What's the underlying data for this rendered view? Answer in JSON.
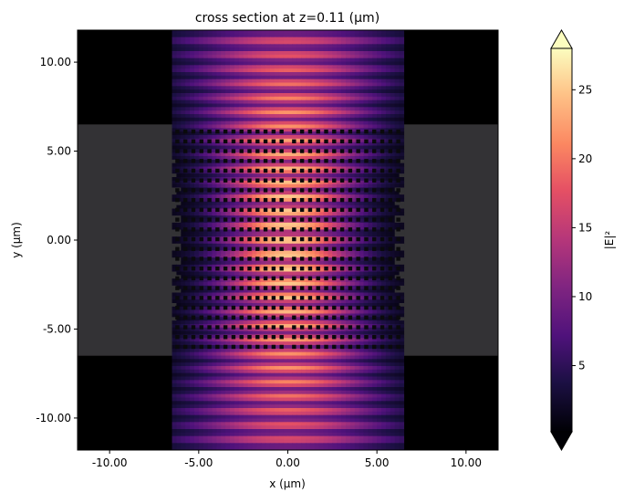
{
  "chart_data": {
    "type": "heatmap",
    "title": "cross section at z=0.11 (μm)",
    "xlabel": "x (μm)",
    "ylabel": "y (μm)",
    "xlim": [
      -11.8,
      11.8
    ],
    "ylim": [
      -11.8,
      11.8
    ],
    "x_ticks": [
      -10,
      -5,
      0,
      5,
      10
    ],
    "x_tick_labels": [
      "-10.00",
      "-5.00",
      "0.00",
      "5.00",
      "10.00"
    ],
    "y_ticks": [
      10,
      5,
      0,
      -5,
      -10
    ],
    "y_tick_labels": [
      "10.00",
      "5.00",
      "0.00",
      "-5.00",
      "-10.00"
    ],
    "colorbar": {
      "label": "|E|²",
      "range": [
        0.2,
        28
      ],
      "ticks": [
        5,
        10,
        15,
        20,
        25
      ],
      "tick_labels": [
        "5",
        "10",
        "15",
        "20",
        "25"
      ],
      "colormap": "magma",
      "extend": "both"
    },
    "field": {
      "peak_value": 28,
      "max_y_um": 11.8,
      "beam_waist_um": 3.8,
      "fringe_period_um": 0.8
    },
    "structure": {
      "simulation_x_range_um": [
        -6.5,
        6.5
      ],
      "slab_y_range_um": [
        -6.5,
        6.5
      ],
      "hole_columns_x_um": [
        -6.2,
        -5.75,
        -5.3,
        -4.85,
        -4.4,
        -3.95,
        -3.5,
        -3.05,
        -2.6,
        -2.15,
        -1.7,
        -1.25,
        -0.8,
        -0.35,
        0.35,
        0.8,
        1.25,
        1.7,
        2.15,
        2.6,
        3.05,
        3.5,
        3.95,
        4.4,
        4.85,
        5.3,
        5.75,
        6.2
      ],
      "hole_rows_y_um": [
        6.1,
        5.55,
        5.0,
        4.45,
        3.9,
        3.35,
        2.8,
        2.25,
        1.7,
        1.15,
        0.6,
        0.05,
        -0.5,
        -1.05,
        -1.6,
        -2.15,
        -2.7,
        -3.25,
        -3.8,
        -4.35,
        -4.9,
        -5.45,
        -6.0
      ]
    }
  }
}
